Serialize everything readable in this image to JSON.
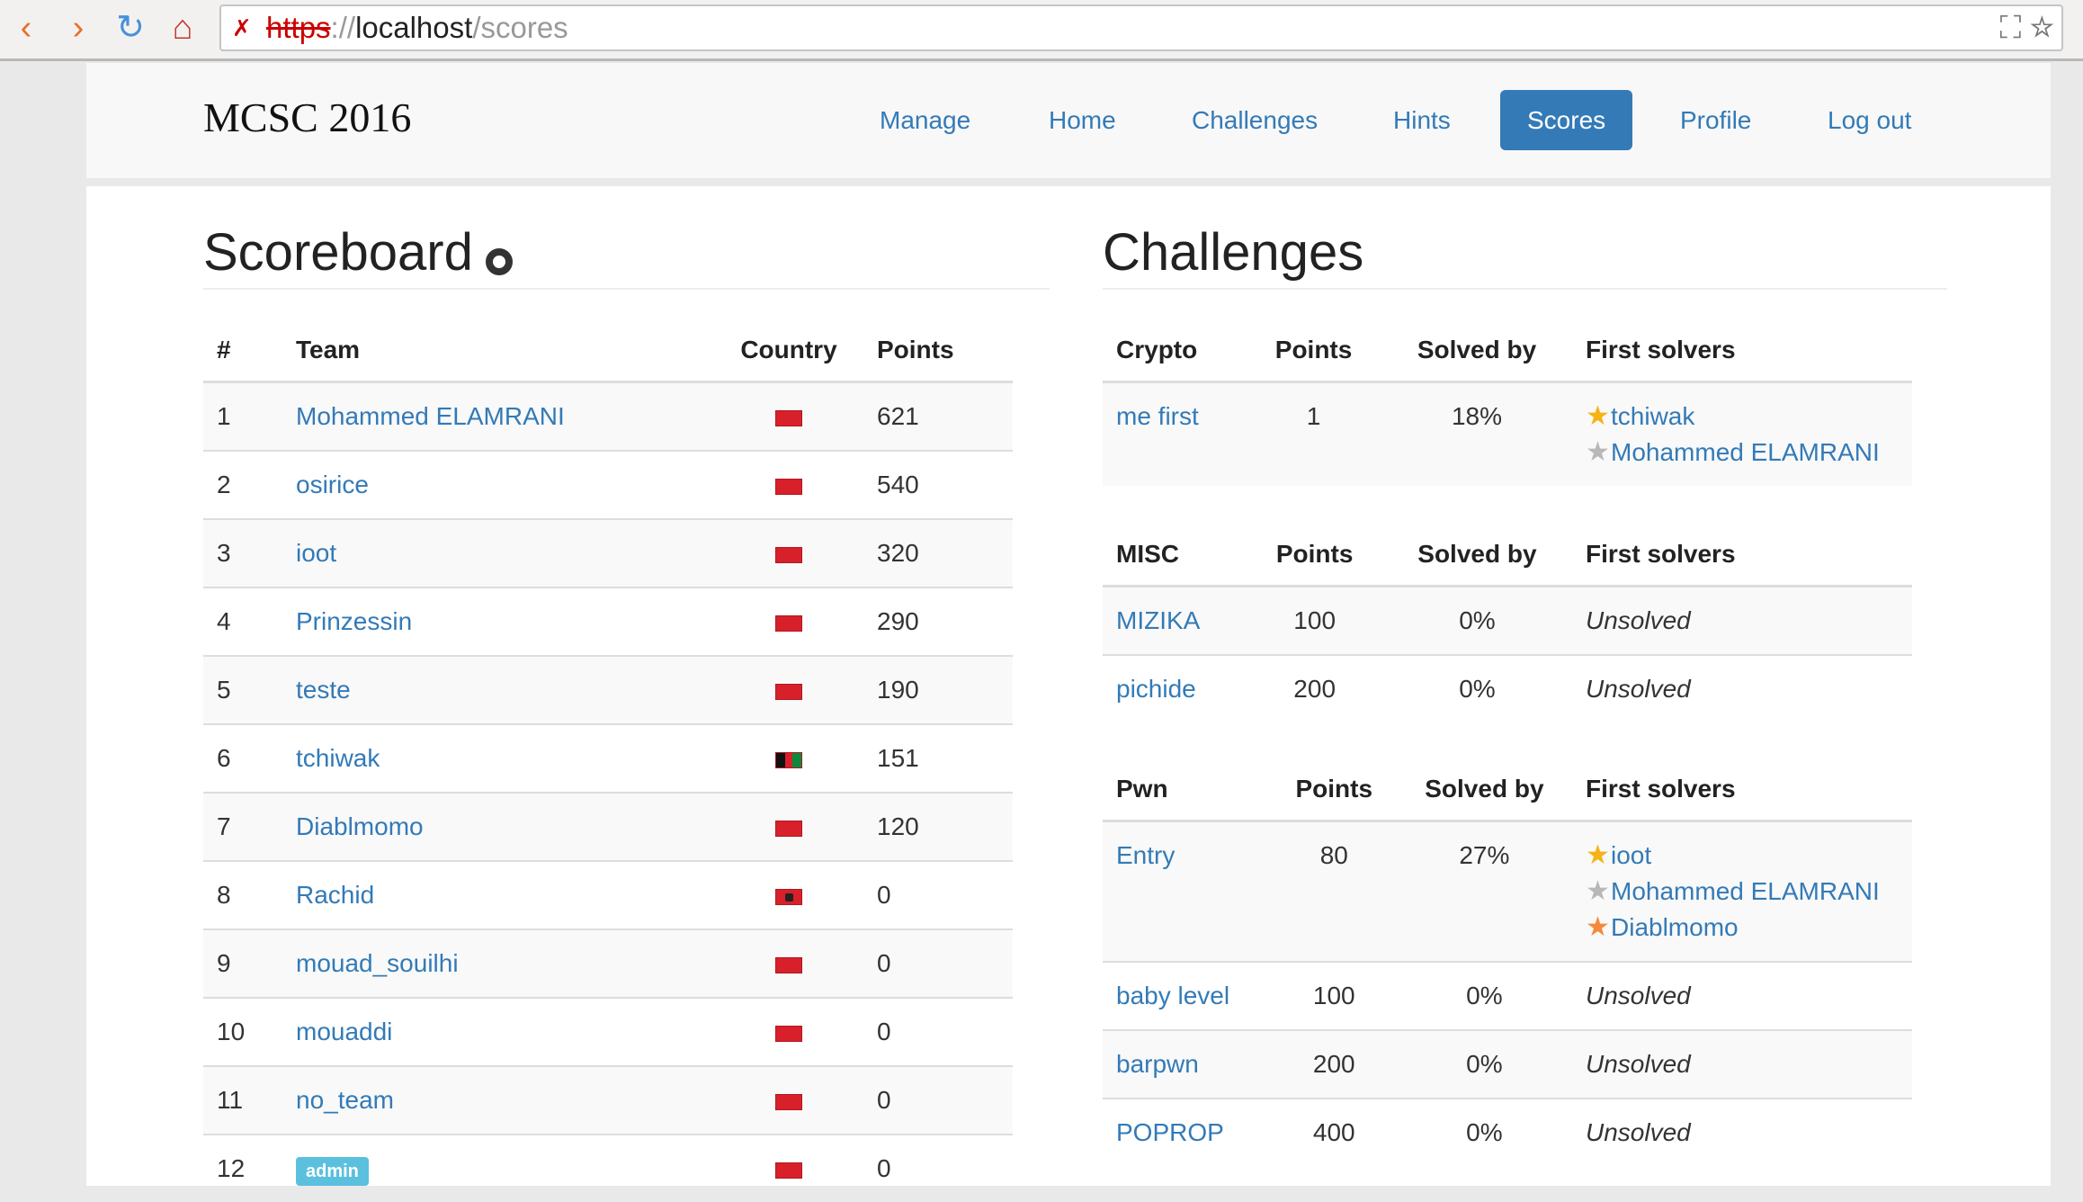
{
  "browser": {
    "url_scheme": "https",
    "url_sep": "://",
    "url_host": "localhost",
    "url_path": "/scores"
  },
  "navbar": {
    "brand": "MCSC 2016",
    "items": [
      {
        "label": "Manage"
      },
      {
        "label": "Home"
      },
      {
        "label": "Challenges"
      },
      {
        "label": "Hints"
      },
      {
        "label": "Scores",
        "active": true
      },
      {
        "label": "Profile"
      },
      {
        "label": "Log out"
      }
    ]
  },
  "scoreboard": {
    "title": "Scoreboard",
    "headers": [
      "#",
      "Team",
      "Country",
      "Points"
    ],
    "rows": [
      {
        "rank": "1",
        "team": "Mohammed ELAMRANI",
        "flag": "morocco",
        "points": "621"
      },
      {
        "rank": "2",
        "team": "osirice",
        "flag": "morocco",
        "points": "540"
      },
      {
        "rank": "3",
        "team": "ioot",
        "flag": "morocco",
        "points": "320"
      },
      {
        "rank": "4",
        "team": "Prinzessin",
        "flag": "morocco",
        "points": "290"
      },
      {
        "rank": "5",
        "team": "teste",
        "flag": "morocco",
        "points": "190"
      },
      {
        "rank": "6",
        "team": "tchiwak",
        "flag": "afghanistan",
        "points": "151"
      },
      {
        "rank": "7",
        "team": "Diablmomo",
        "flag": "morocco",
        "points": "120"
      },
      {
        "rank": "8",
        "team": "Rachid",
        "flag": "albania",
        "points": "0"
      },
      {
        "rank": "9",
        "team": "mouad_souilhi",
        "flag": "morocco",
        "points": "0"
      },
      {
        "rank": "10",
        "team": "mouaddi",
        "flag": "morocco",
        "points": "0"
      },
      {
        "rank": "11",
        "team": "no_team",
        "flag": "morocco",
        "points": "0"
      },
      {
        "rank": "12",
        "team": "admin",
        "badge": true,
        "flag": "morocco",
        "points": "0"
      }
    ]
  },
  "challenges": {
    "title": "Challenges",
    "categories": [
      {
        "name": "Crypto",
        "headers": [
          "Points",
          "Solved by",
          "First solvers"
        ],
        "rows": [
          {
            "name": "me first",
            "points": "1",
            "solved": "18%",
            "solvers": [
              {
                "name": "tchiwak",
                "medal": "gold"
              },
              {
                "name": "Mohammed ELAMRANI",
                "medal": "silver"
              }
            ]
          }
        ]
      },
      {
        "name": "MISC",
        "headers": [
          "Points",
          "Solved by",
          "First solvers"
        ],
        "rows": [
          {
            "name": "MIZIKA",
            "points": "100",
            "solved": "0%",
            "unsolved": "Unsolved"
          },
          {
            "name": "pichide",
            "points": "200",
            "solved": "0%",
            "unsolved": "Unsolved"
          }
        ]
      },
      {
        "name": "Pwn",
        "headers": [
          "Points",
          "Solved by",
          "First solvers"
        ],
        "rows": [
          {
            "name": "Entry",
            "points": "80",
            "solved": "27%",
            "solvers": [
              {
                "name": "ioot",
                "medal": "gold"
              },
              {
                "name": "Mohammed ELAMRANI",
                "medal": "silver"
              },
              {
                "name": "Diablmomo",
                "medal": "bronze"
              }
            ]
          },
          {
            "name": "baby level",
            "points": "100",
            "solved": "0%",
            "unsolved": "Unsolved"
          },
          {
            "name": "barpwn",
            "points": "200",
            "solved": "0%",
            "unsolved": "Unsolved"
          },
          {
            "name": "POPROP",
            "points": "400",
            "solved": "0%",
            "unsolved": "Unsolved"
          }
        ]
      }
    ]
  }
}
